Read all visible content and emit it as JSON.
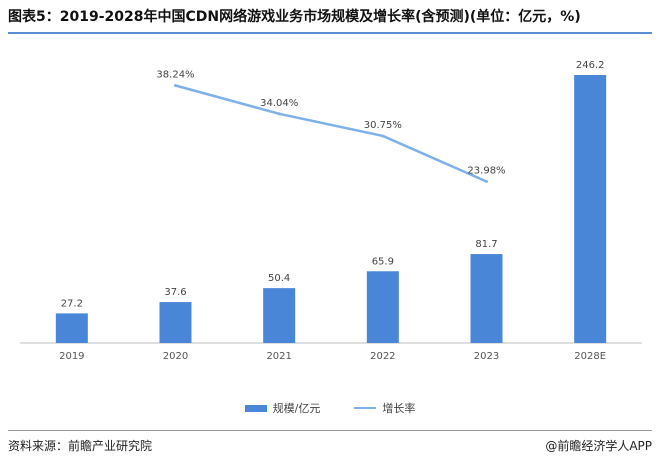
{
  "title": "图表5：2019-2028年中国CDN网络游戏业务市场规模及增长率(含预测)(单位：亿元，%)",
  "source": "资料来源：前瞻产业研究院",
  "brand": "@前瞻经济学人APP",
  "colors": {
    "bar": "#4a86d8",
    "line": "#7fb0e8",
    "accent_rule": "#5b8fd6"
  },
  "chart_data": {
    "type": "bar",
    "categories": [
      "2019",
      "2020",
      "2021",
      "2022",
      "2023",
      "2028E"
    ],
    "series": [
      {
        "name": "规模/亿元",
        "type": "bar",
        "values": [
          27.2,
          37.6,
          50.4,
          65.9,
          81.7,
          246.2
        ],
        "labels": [
          "27.2",
          "37.6",
          "50.4",
          "65.9",
          "81.7",
          "246.2"
        ]
      },
      {
        "name": "增长率",
        "type": "line",
        "values": [
          null,
          38.24,
          34.04,
          30.75,
          23.98,
          null
        ],
        "labels": [
          "",
          "38.24%",
          "34.04%",
          "30.75%",
          "23.98%",
          ""
        ]
      }
    ],
    "ylim_bar": [
      0,
      260
    ],
    "ylim_line": [
      0,
      45
    ],
    "grid": false,
    "legend_position": "bottom"
  }
}
